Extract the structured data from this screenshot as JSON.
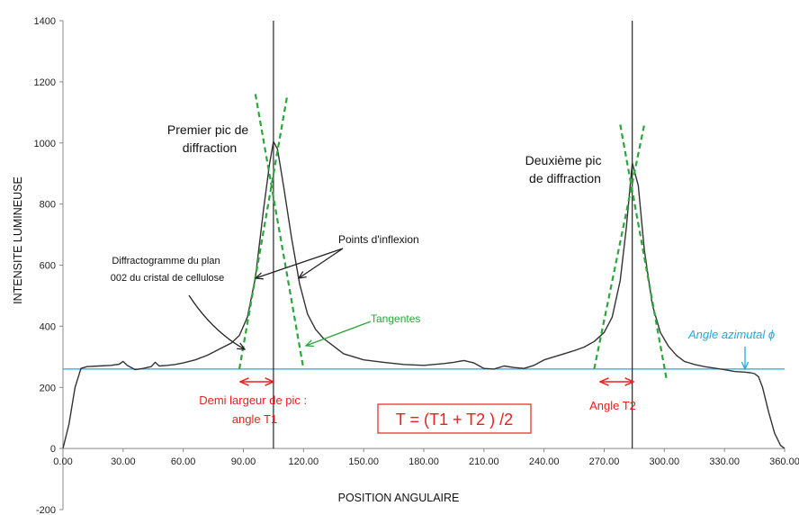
{
  "chart_data": {
    "type": "line",
    "xlabel": "POSITION ANGULAIRE",
    "ylabel": "INTENSITE LUMINEUSE",
    "xlim": [
      0,
      360
    ],
    "ylim": [
      -200,
      1400
    ],
    "x_ticks": [
      0,
      30,
      60,
      90,
      120,
      150,
      180,
      210,
      240,
      270,
      300,
      330,
      360
    ],
    "x_tick_labels": [
      "0.00",
      "30.00",
      "60.00",
      "90.00",
      "120.00",
      "150.00",
      "180.00",
      "210.00",
      "240.00",
      "270.00",
      "300.00",
      "330.00",
      "360.00"
    ],
    "y_ticks": [
      -200,
      0,
      200,
      400,
      600,
      800,
      1000,
      1200,
      1400
    ],
    "y_tick_labels": [
      "-200",
      "0",
      "200",
      "400",
      "600",
      "800",
      "1000",
      "1200",
      "1400"
    ],
    "grid": false,
    "series": [
      {
        "color": "#333333",
        "x": [
          0,
          3,
          6,
          9,
          12,
          18,
          24,
          28,
          30,
          32,
          36,
          40,
          44,
          46,
          48,
          52,
          56,
          60,
          66,
          72,
          78,
          84,
          88,
          92,
          96,
          100,
          103,
          105,
          107,
          110,
          114,
          118,
          122,
          126,
          130,
          135,
          140,
          150,
          160,
          170,
          180,
          190,
          195,
          200,
          205,
          210,
          215,
          220,
          225,
          230,
          235,
          240,
          245,
          250,
          255,
          260,
          265,
          270,
          274,
          278,
          281,
          284,
          287,
          290,
          294,
          298,
          302,
          306,
          310,
          315,
          320,
          330,
          335,
          340,
          343,
          345,
          347,
          349,
          352,
          355,
          358,
          360
        ],
        "y": [
          0,
          80,
          200,
          262,
          268,
          270,
          272,
          276,
          285,
          272,
          258,
          262,
          268,
          282,
          270,
          272,
          275,
          280,
          290,
          305,
          325,
          345,
          370,
          430,
          560,
          780,
          930,
          1005,
          980,
          860,
          690,
          540,
          440,
          390,
          360,
          335,
          310,
          290,
          282,
          275,
          272,
          278,
          282,
          288,
          280,
          262,
          260,
          270,
          265,
          262,
          272,
          290,
          300,
          310,
          320,
          332,
          350,
          380,
          430,
          550,
          720,
          935,
          860,
          650,
          470,
          380,
          335,
          305,
          285,
          275,
          268,
          258,
          252,
          250,
          248,
          245,
          235,
          200,
          120,
          50,
          10,
          0
        ]
      }
    ],
    "reference_line": {
      "y": 260,
      "color": "#1fa9e1"
    },
    "peak_lines": [
      105,
      284
    ],
    "tangent_lines": [
      {
        "x": [
          88,
          112
        ],
        "y": [
          260,
          1160
        ]
      },
      {
        "x": [
          96,
          120
        ],
        "y": [
          1160,
          260
        ]
      },
      {
        "x": [
          265,
          290
        ],
        "y": [
          260,
          1060
        ]
      },
      {
        "x": [
          278,
          301
        ],
        "y": [
          1060,
          230
        ]
      }
    ],
    "annotations": [
      {
        "lines": [
          "Premier pic de",
          "diffraction"
        ],
        "color": "black"
      },
      {
        "lines": [
          "Deuxième pic",
          "de diffraction"
        ],
        "color": "black"
      },
      {
        "lines": [
          "Points d'inflexion"
        ],
        "color": "black"
      },
      {
        "lines": [
          "Diffractogramme du plan",
          "002 du cristal de cellulose"
        ],
        "color": "black"
      },
      {
        "lines": [
          "Tangentes"
        ],
        "color": "green"
      },
      {
        "lines": [
          "Angle azimutal ϕ"
        ],
        "color": "blue"
      },
      {
        "lines": [
          "Demi largeur de pic :",
          "angle T1"
        ],
        "color": "red"
      },
      {
        "lines": [
          "Angle T2"
        ],
        "color": "red"
      },
      {
        "lines": [
          "T = (T1 + T2 ) /2"
        ],
        "color": "red"
      }
    ]
  }
}
